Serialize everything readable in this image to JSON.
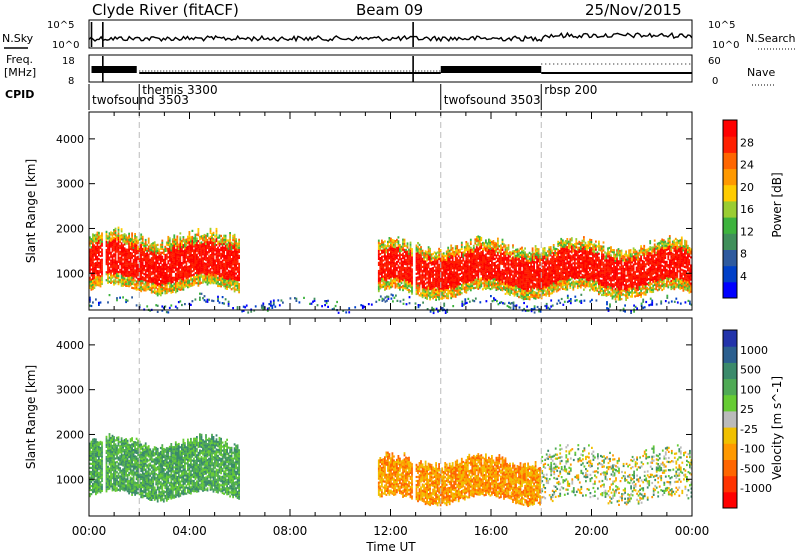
{
  "header": {
    "station": "Clyde River (fitACF)",
    "beam": "Beam 09",
    "date": "25/Nov/2015"
  },
  "status_panels": {
    "nsky_label": "N.Sky",
    "nsearch_label": "N.Search",
    "freq_label_top": "Freq.",
    "freq_label_unit": "[MHz]",
    "nave_label": "Nave",
    "cpid_label": "CPID",
    "nsky_ticks": [
      "10^5",
      "10^0"
    ],
    "nsearch_ticks": [
      "10^5",
      "10^0"
    ],
    "freq_ticks": [
      "18",
      "8"
    ],
    "nave_ticks": [
      "60",
      "0"
    ]
  },
  "cpid_programs": [
    {
      "name": "twofsound",
      "id": "3503",
      "label": "twofsound 3503",
      "start_hour": 0.0,
      "row": 2
    },
    {
      "name": "themis",
      "id": "3300",
      "label": "themis 3300",
      "start_hour": 2.0,
      "row": 1
    },
    {
      "name": "twofsound",
      "id": "3503",
      "label": "twofsound 3503",
      "start_hour": 14.0,
      "row": 2
    },
    {
      "name": "rbsp",
      "id": "200",
      "label": "rbsp 200",
      "start_hour": 18.0,
      "row": 1
    }
  ],
  "axes": {
    "x_label": "Time UT",
    "x_ticks": [
      "00:00",
      "04:00",
      "08:00",
      "12:00",
      "16:00",
      "20:00",
      "00:00"
    ],
    "x_range_hours": [
      0,
      24
    ],
    "y_label": "Slant Range [km]",
    "y_ticks": [
      "1000",
      "2000",
      "3000",
      "4000"
    ],
    "y_range_km": [
      180,
      4600
    ]
  },
  "power_colorbar": {
    "label": "Power [dB]",
    "ticks": [
      "4",
      "8",
      "12",
      "16",
      "20",
      "24",
      "28"
    ],
    "colors": [
      "#0000ff",
      "#0040c8",
      "#2e5a9e",
      "#3f8f5a",
      "#3db33d",
      "#9acd32",
      "#ffcc00",
      "#ff9900",
      "#ff6600",
      "#ff2000",
      "#ff0000"
    ]
  },
  "velocity_colorbar": {
    "label": "Velocity [m s^-1]",
    "ticks": [
      "1000",
      "500",
      "100",
      "25",
      "-25",
      "-100",
      "-500",
      "-1000"
    ],
    "colors": [
      "#2233aa",
      "#2b5f8f",
      "#3b8a6b",
      "#4faa55",
      "#66cc33",
      "#bbbbbb",
      "#f0c000",
      "#ff9900",
      "#ff6600",
      "#ff3300",
      "#ff0000"
    ]
  },
  "chart_data": [
    {
      "type": "heatmap",
      "title": "Power",
      "xlabel": "Time UT",
      "ylabel": "Slant Range [km]",
      "xlim": [
        0,
        24
      ],
      "ylim": [
        180,
        4600
      ],
      "colorbar_label": "Power [dB]",
      "colorbar_ticks": [
        4,
        8,
        12,
        16,
        20,
        24,
        28
      ],
      "regions": [
        {
          "t_start": 0.0,
          "t_end": 6.0,
          "range_low": 600,
          "range_high": 1900,
          "dominant_power_db": 28
        },
        {
          "t_start": 11.5,
          "t_end": 24.0,
          "range_low": 500,
          "range_high": 1700,
          "dominant_power_db": 28
        },
        {
          "t_start": 0.0,
          "t_end": 24.0,
          "range_low": 200,
          "range_high": 450,
          "dominant_power_db": 8
        }
      ]
    },
    {
      "type": "heatmap",
      "title": "Velocity",
      "xlabel": "Time UT",
      "ylabel": "Slant Range [km]",
      "xlim": [
        0,
        24
      ],
      "ylim": [
        180,
        4600
      ],
      "colorbar_label": "Velocity [m s^-1]",
      "colorbar_ticks": [
        1000,
        500,
        100,
        25,
        -25,
        -100,
        -500,
        -1000
      ],
      "regions": [
        {
          "t_start": 0.0,
          "t_end": 6.0,
          "range_low": 600,
          "range_high": 1900,
          "dominant_velocity": 100
        },
        {
          "t_start": 11.5,
          "t_end": 18.0,
          "range_low": 500,
          "range_high": 1500,
          "dominant_velocity": -100
        },
        {
          "t_start": 18.0,
          "t_end": 24.0,
          "range_low": 500,
          "range_high": 1700,
          "dominant_velocity": 25
        }
      ]
    }
  ]
}
